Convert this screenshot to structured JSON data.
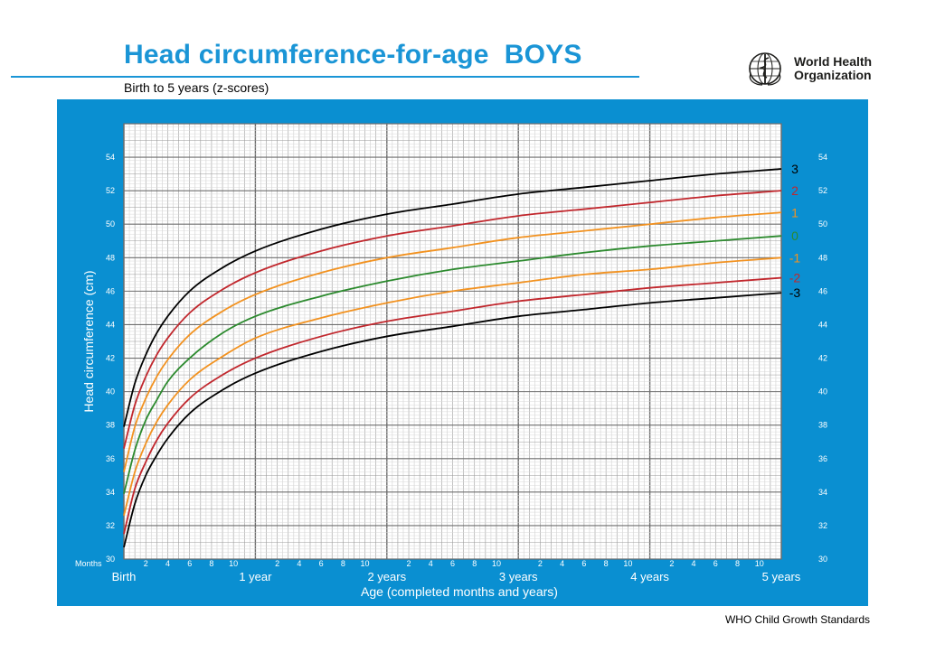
{
  "header": {
    "title": "Head circumference-for-age  BOYS",
    "subtitle": "Birth to 5 years (z-scores)",
    "org_line1": "World Health",
    "org_line2": "Organization"
  },
  "footer": {
    "text": "WHO Child Growth Standards"
  },
  "colors": {
    "brand_blue": "#1a95d6",
    "panel_blue": "#0a8fd1",
    "sd3": "#000000",
    "sd2": "#c1272d",
    "sd1": "#f29220",
    "median": "#2c8a2e"
  },
  "chart_data": {
    "type": "line",
    "xlabel": "Age (completed months and years)",
    "ylabel": "Head circumference (cm)",
    "x_unit_label": "Months",
    "xlim": [
      0,
      60
    ],
    "ylim": [
      30,
      56
    ],
    "y_ticks": [
      30,
      32,
      34,
      36,
      38,
      40,
      42,
      44,
      46,
      48,
      50,
      52,
      54
    ],
    "x_major_labels": [
      {
        "month": 0,
        "label": "Birth"
      },
      {
        "month": 12,
        "label": "1 year"
      },
      {
        "month": 24,
        "label": "2 years"
      },
      {
        "month": 36,
        "label": "3 years"
      },
      {
        "month": 48,
        "label": "4 years"
      },
      {
        "month": 60,
        "label": "5 years"
      }
    ],
    "x_minor_labels": [
      "2",
      "4",
      "6",
      "8",
      "10"
    ],
    "grid": true,
    "x": [
      0,
      1,
      2,
      3,
      4,
      6,
      9,
      12,
      18,
      24,
      30,
      36,
      42,
      48,
      54,
      60
    ],
    "series": [
      {
        "name": "3",
        "color": "#000000",
        "values": [
          37.9,
          40.5,
          42.2,
          43.5,
          44.5,
          46.0,
          47.4,
          48.4,
          49.7,
          50.6,
          51.2,
          51.8,
          52.2,
          52.6,
          53.0,
          53.3
        ]
      },
      {
        "name": "2",
        "color": "#c1272d",
        "values": [
          36.6,
          39.2,
          40.9,
          42.2,
          43.2,
          44.7,
          46.1,
          47.1,
          48.4,
          49.3,
          49.9,
          50.5,
          50.9,
          51.3,
          51.7,
          52.0
        ]
      },
      {
        "name": "1",
        "color": "#f29220",
        "values": [
          35.2,
          37.9,
          39.6,
          40.9,
          41.9,
          43.4,
          44.8,
          45.8,
          47.1,
          48.0,
          48.6,
          49.2,
          49.6,
          50.0,
          50.4,
          50.7
        ]
      },
      {
        "name": "0",
        "color": "#2c8a2e",
        "values": [
          33.9,
          36.5,
          38.3,
          39.5,
          40.6,
          42.0,
          43.5,
          44.5,
          45.7,
          46.6,
          47.3,
          47.8,
          48.3,
          48.7,
          49.0,
          49.3
        ]
      },
      {
        "name": "-1",
        "color": "#f29220",
        "values": [
          32.6,
          35.2,
          36.9,
          38.2,
          39.2,
          40.7,
          42.1,
          43.2,
          44.4,
          45.3,
          46.0,
          46.5,
          47.0,
          47.3,
          47.7,
          48.0
        ]
      },
      {
        "name": "-2",
        "color": "#c1272d",
        "values": [
          31.5,
          34.2,
          35.8,
          37.1,
          38.1,
          39.6,
          41.0,
          42.0,
          43.3,
          44.2,
          44.8,
          45.4,
          45.8,
          46.2,
          46.5,
          46.8
        ]
      },
      {
        "name": "-3",
        "color": "#000000",
        "values": [
          30.7,
          33.3,
          35.0,
          36.2,
          37.2,
          38.7,
          40.1,
          41.1,
          42.4,
          43.3,
          43.9,
          44.5,
          44.9,
          45.3,
          45.6,
          45.9
        ]
      }
    ]
  }
}
